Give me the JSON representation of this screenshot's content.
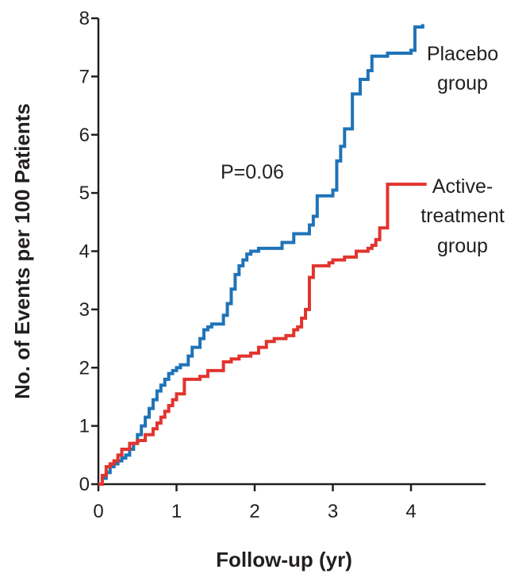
{
  "chart_data": {
    "type": "line",
    "ylabel": "No. of Events per 100 Patients",
    "xlabel": "Follow-up (yr)",
    "xlim": [
      0,
      4.9
    ],
    "ylim": [
      0,
      8
    ],
    "xticks": [
      "0",
      "1",
      "2",
      "3",
      "4"
    ],
    "yticks": [
      "0",
      "1",
      "2",
      "3",
      "4",
      "5",
      "6",
      "7",
      "8"
    ],
    "annotation": "P=0.06",
    "legend": [
      "Placebo",
      "group",
      "Active-",
      "treatment",
      "group"
    ],
    "series": [
      {
        "name": "Placebo group",
        "color": "#1f73b7",
        "x": [
          0,
          0.05,
          0.1,
          0.15,
          0.2,
          0.25,
          0.3,
          0.35,
          0.4,
          0.45,
          0.5,
          0.55,
          0.6,
          0.65,
          0.7,
          0.75,
          0.8,
          0.85,
          0.9,
          0.95,
          1.0,
          1.05,
          1.15,
          1.2,
          1.3,
          1.35,
          1.4,
          1.45,
          1.6,
          1.65,
          1.7,
          1.75,
          1.8,
          1.85,
          1.9,
          1.95,
          2.05,
          2.35,
          2.5,
          2.7,
          2.75,
          2.8,
          3.0,
          3.05,
          3.1,
          3.15,
          3.25,
          3.35,
          3.45,
          3.5,
          3.7,
          4.0,
          4.05,
          4.15
        ],
        "y": [
          0,
          0.1,
          0.2,
          0.3,
          0.35,
          0.4,
          0.45,
          0.5,
          0.6,
          0.7,
          0.85,
          1.0,
          1.15,
          1.3,
          1.45,
          1.6,
          1.7,
          1.8,
          1.9,
          1.95,
          2.0,
          2.05,
          2.2,
          2.35,
          2.5,
          2.65,
          2.7,
          2.75,
          2.9,
          3.1,
          3.35,
          3.6,
          3.75,
          3.85,
          3.95,
          4.0,
          4.05,
          4.15,
          4.3,
          4.45,
          4.6,
          4.95,
          5.05,
          5.55,
          5.8,
          6.1,
          6.7,
          6.95,
          7.1,
          7.35,
          7.4,
          7.45,
          7.85,
          7.9
        ]
      },
      {
        "name": "Active-treatment group",
        "color": "#e1342d",
        "x": [
          0,
          0.05,
          0.1,
          0.15,
          0.2,
          0.25,
          0.3,
          0.4,
          0.5,
          0.6,
          0.7,
          0.75,
          0.8,
          0.85,
          0.9,
          0.95,
          1.0,
          1.1,
          1.3,
          1.4,
          1.6,
          1.7,
          1.8,
          1.95,
          2.05,
          2.15,
          2.25,
          2.4,
          2.5,
          2.55,
          2.6,
          2.65,
          2.7,
          2.75,
          2.95,
          3.0,
          3.15,
          3.3,
          3.45,
          3.5,
          3.55,
          3.6,
          3.7,
          3.75,
          3.8,
          4.0,
          4.2
        ],
        "y": [
          0,
          0.15,
          0.3,
          0.35,
          0.4,
          0.5,
          0.6,
          0.7,
          0.75,
          0.85,
          0.95,
          1.05,
          1.15,
          1.25,
          1.35,
          1.45,
          1.55,
          1.8,
          1.85,
          1.95,
          2.1,
          2.15,
          2.2,
          2.25,
          2.35,
          2.45,
          2.5,
          2.55,
          2.65,
          2.7,
          2.85,
          3.0,
          3.55,
          3.75,
          3.8,
          3.85,
          3.9,
          4.0,
          4.05,
          4.1,
          4.2,
          4.4,
          5.15,
          5.15,
          5.15,
          5.15,
          5.15
        ]
      }
    ]
  }
}
